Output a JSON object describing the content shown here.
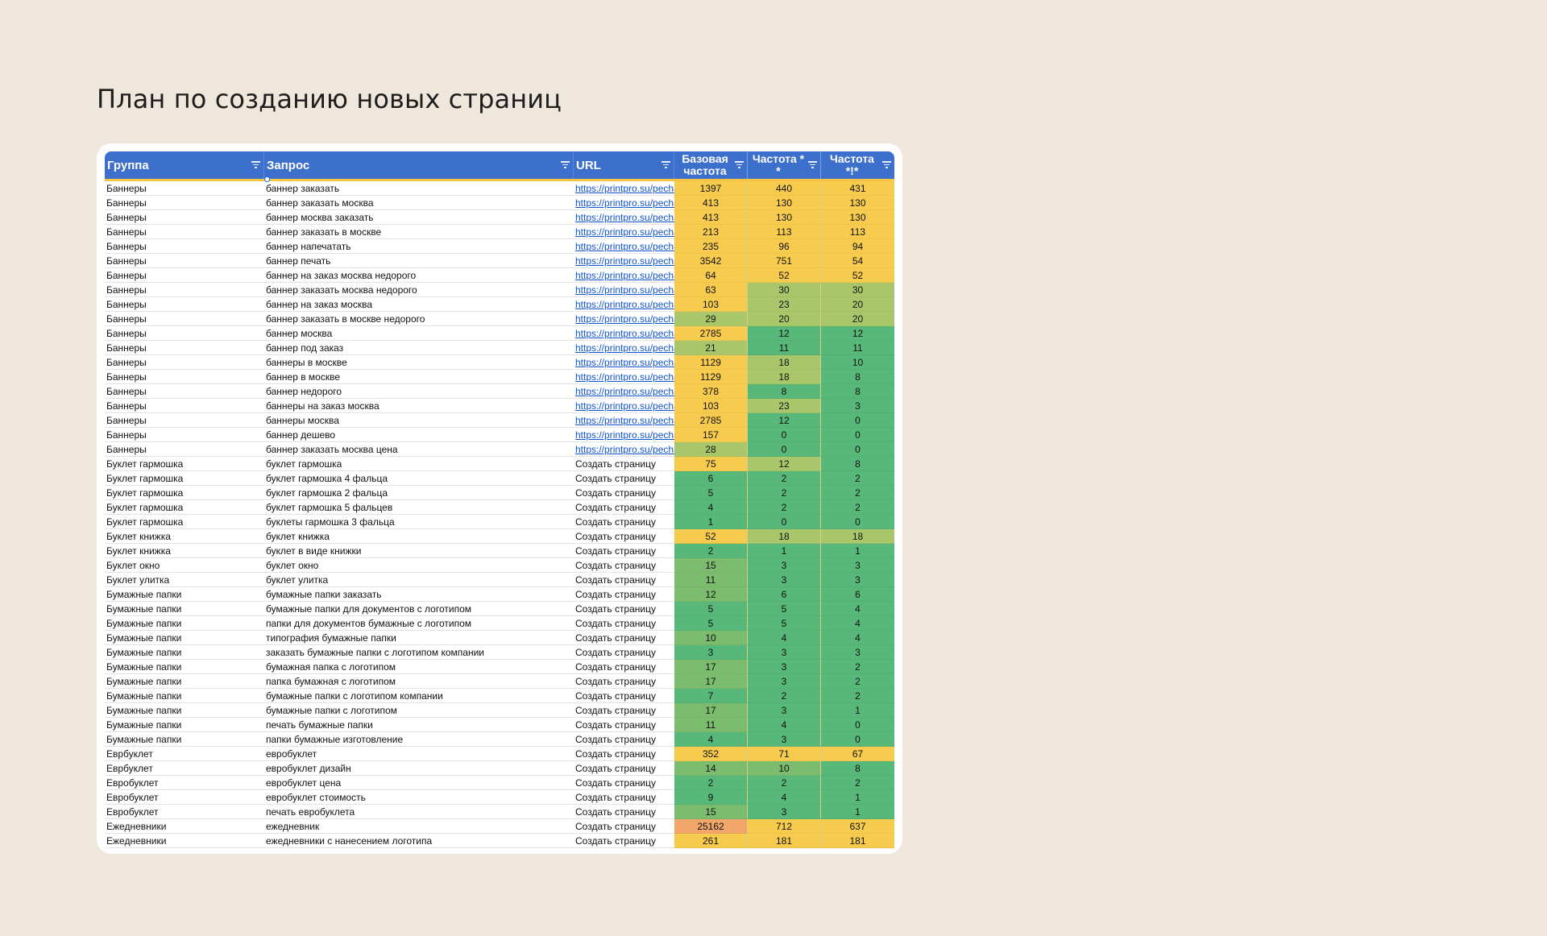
{
  "page": {
    "title": "План по созданию новых страниц"
  },
  "colors": {
    "yellow": "#f7cb4d",
    "yellow_green": "#e3c95a",
    "light_green": "#a9c76a",
    "mid_green": "#7cbc6e",
    "green": "#57b87a",
    "orange": "#f2a66a",
    "header": "#3d6fcd"
  },
  "table": {
    "headers": {
      "group": "Группа",
      "query": "Запрос",
      "url": "URL",
      "base_freq_1": "Базовая",
      "base_freq_2": "частота",
      "freq_q_1": "Частота *",
      "freq_q_2": "*",
      "freq_e_1": "Частота",
      "freq_e_2": "*!*"
    },
    "rows": [
      [
        "Баннеры",
        "баннер заказать",
        "https://printpro.su/pecha",
        "1397",
        "440",
        "431"
      ],
      [
        "Баннеры",
        "баннер заказать москва",
        "https://printpro.su/pecha",
        "413",
        "130",
        "130"
      ],
      [
        "Баннеры",
        "баннер москва заказать",
        "https://printpro.su/pecha",
        "413",
        "130",
        "130"
      ],
      [
        "Баннеры",
        "баннер заказать в москве",
        "https://printpro.su/pecha",
        "213",
        "113",
        "113"
      ],
      [
        "Баннеры",
        "баннер напечатать",
        "https://printpro.su/pecha",
        "235",
        "96",
        "94"
      ],
      [
        "Баннеры",
        "баннер печать",
        "https://printpro.su/pecha",
        "3542",
        "751",
        "54"
      ],
      [
        "Баннеры",
        "баннер на заказ москва недорого",
        "https://printpro.su/pecha",
        "64",
        "52",
        "52"
      ],
      [
        "Баннеры",
        "баннер заказать москва недорого",
        "https://printpro.su/pecha",
        "63",
        "30",
        "30"
      ],
      [
        "Баннеры",
        "баннер на заказ москва",
        "https://printpro.su/pecha",
        "103",
        "23",
        "20"
      ],
      [
        "Баннеры",
        "баннер заказать в москве недорого",
        "https://printpro.su/pecha",
        "29",
        "20",
        "20"
      ],
      [
        "Баннеры",
        "баннер москва",
        "https://printpro.su/pecha",
        "2785",
        "12",
        "12"
      ],
      [
        "Баннеры",
        "баннер под заказ",
        "https://printpro.su/pecha",
        "21",
        "11",
        "11"
      ],
      [
        "Баннеры",
        "баннеры в москве",
        "https://printpro.su/pecha",
        "1129",
        "18",
        "10"
      ],
      [
        "Баннеры",
        "баннер в москве",
        "https://printpro.su/pecha",
        "1129",
        "18",
        "8"
      ],
      [
        "Баннеры",
        "баннер недорого",
        "https://printpro.su/pecha",
        "378",
        "8",
        "8"
      ],
      [
        "Баннеры",
        "баннеры на заказ москва",
        "https://printpro.su/pecha",
        "103",
        "23",
        "3"
      ],
      [
        "Баннеры",
        "баннеры москва",
        "https://printpro.su/pecha",
        "2785",
        "12",
        "0"
      ],
      [
        "Баннеры",
        "баннер дешево",
        "https://printpro.su/pecha",
        "157",
        "0",
        "0"
      ],
      [
        "Баннеры",
        "баннер заказать москва цена",
        "https://printpro.su/pecha",
        "28",
        "0",
        "0"
      ],
      [
        "Буклет гармошка",
        "буклет гармошка",
        "Создать страницу",
        "75",
        "12",
        "8"
      ],
      [
        "Буклет гармошка",
        "буклет гармошка 4 фальца",
        "Создать страницу",
        "6",
        "2",
        "2"
      ],
      [
        "Буклет гармошка",
        "буклет гармошка 2 фальца",
        "Создать страницу",
        "5",
        "2",
        "2"
      ],
      [
        "Буклет гармошка",
        "буклет гармошка 5 фальцев",
        "Создать страницу",
        "4",
        "2",
        "2"
      ],
      [
        "Буклет гармошка",
        "буклеты гармошка 3 фальца",
        "Создать страницу",
        "1",
        "0",
        "0"
      ],
      [
        "Буклет книжка",
        "буклет книжка",
        "Создать страницу",
        "52",
        "18",
        "18"
      ],
      [
        "Буклет книжка",
        "буклет в виде книжки",
        "Создать страницу",
        "2",
        "1",
        "1"
      ],
      [
        "Буклет окно",
        "буклет окно",
        "Создать страницу",
        "15",
        "3",
        "3"
      ],
      [
        "Буклет улитка",
        "буклет улитка",
        "Создать страницу",
        "11",
        "3",
        "3"
      ],
      [
        "Бумажные папки",
        "бумажные папки заказать",
        "Создать страницу",
        "12",
        "6",
        "6"
      ],
      [
        "Бумажные папки",
        "бумажные папки для документов с логотипом",
        "Создать страницу",
        "5",
        "5",
        "4"
      ],
      [
        "Бумажные папки",
        "папки для документов бумажные с логотипом",
        "Создать страницу",
        "5",
        "5",
        "4"
      ],
      [
        "Бумажные папки",
        "типография бумажные папки",
        "Создать страницу",
        "10",
        "4",
        "4"
      ],
      [
        "Бумажные папки",
        "заказать бумажные папки с логотипом компании",
        "Создать страницу",
        "3",
        "3",
        "3"
      ],
      [
        "Бумажные папки",
        "бумажная папка с логотипом",
        "Создать страницу",
        "17",
        "3",
        "2"
      ],
      [
        "Бумажные папки",
        "папка бумажная с логотипом",
        "Создать страницу",
        "17",
        "3",
        "2"
      ],
      [
        "Бумажные папки",
        "бумажные папки с логотипом компании",
        "Создать страницу",
        "7",
        "2",
        "2"
      ],
      [
        "Бумажные папки",
        "бумажные папки с логотипом",
        "Создать страницу",
        "17",
        "3",
        "1"
      ],
      [
        "Бумажные папки",
        "печать бумажные папки",
        "Создать страницу",
        "11",
        "4",
        "0"
      ],
      [
        "Бумажные папки",
        "папки бумажные изготовление",
        "Создать страницу",
        "4",
        "3",
        "0"
      ],
      [
        "Еврбуклет",
        "евробуклет",
        "Создать страницу",
        "352",
        "71",
        "67"
      ],
      [
        "Еврбуклет",
        "евробуклет дизайн",
        "Создать страницу",
        "14",
        "10",
        "8"
      ],
      [
        "Евробуклет",
        "евробуклет цена",
        "Создать страницу",
        "2",
        "2",
        "2"
      ],
      [
        "Евробуклет",
        "евробуклет стоимость",
        "Создать страницу",
        "9",
        "4",
        "1"
      ],
      [
        "Евробуклет",
        "печать евробуклета",
        "Создать страницу",
        "15",
        "3",
        "1"
      ],
      [
        "Ежедневники",
        "ежедневник",
        "Создать страницу",
        "25162",
        "712",
        "637"
      ],
      [
        "Ежедневники",
        "ежедневники с нанесением логотипа",
        "Создать страницу",
        "261",
        "181",
        "181"
      ]
    ],
    "cell_colors": [
      [
        "y",
        "y",
        "y"
      ],
      [
        "y",
        "y",
        "y"
      ],
      [
        "y",
        "y",
        "y"
      ],
      [
        "y",
        "y",
        "y"
      ],
      [
        "y",
        "y",
        "y"
      ],
      [
        "y",
        "y",
        "y"
      ],
      [
        "y",
        "y",
        "y"
      ],
      [
        "y",
        "lg",
        "lg"
      ],
      [
        "y",
        "lg",
        "lg"
      ],
      [
        "lg",
        "lg",
        "lg"
      ],
      [
        "y",
        "g",
        "g"
      ],
      [
        "lg",
        "g",
        "g"
      ],
      [
        "y",
        "lg",
        "g"
      ],
      [
        "y",
        "lg",
        "g"
      ],
      [
        "y",
        "g",
        "g"
      ],
      [
        "y",
        "lg",
        "g"
      ],
      [
        "y",
        "g",
        "g"
      ],
      [
        "y",
        "g",
        "g"
      ],
      [
        "lg",
        "g",
        "g"
      ],
      [
        "y",
        "lg",
        "g"
      ],
      [
        "g",
        "g",
        "g"
      ],
      [
        "g",
        "g",
        "g"
      ],
      [
        "g",
        "g",
        "g"
      ],
      [
        "g",
        "g",
        "g"
      ],
      [
        "y",
        "lg",
        "lg"
      ],
      [
        "g",
        "g",
        "g"
      ],
      [
        "mg",
        "g",
        "g"
      ],
      [
        "mg",
        "g",
        "g"
      ],
      [
        "mg",
        "g",
        "g"
      ],
      [
        "g",
        "g",
        "g"
      ],
      [
        "g",
        "g",
        "g"
      ],
      [
        "mg",
        "g",
        "g"
      ],
      [
        "g",
        "g",
        "g"
      ],
      [
        "mg",
        "g",
        "g"
      ],
      [
        "mg",
        "g",
        "g"
      ],
      [
        "g",
        "g",
        "g"
      ],
      [
        "mg",
        "g",
        "g"
      ],
      [
        "mg",
        "g",
        "g"
      ],
      [
        "g",
        "g",
        "g"
      ],
      [
        "y",
        "y",
        "y"
      ],
      [
        "mg",
        "mg",
        "g"
      ],
      [
        "g",
        "g",
        "g"
      ],
      [
        "g",
        "g",
        "g"
      ],
      [
        "mg",
        "g",
        "g"
      ],
      [
        "o",
        "y",
        "y"
      ],
      [
        "y",
        "y",
        "y"
      ]
    ]
  }
}
